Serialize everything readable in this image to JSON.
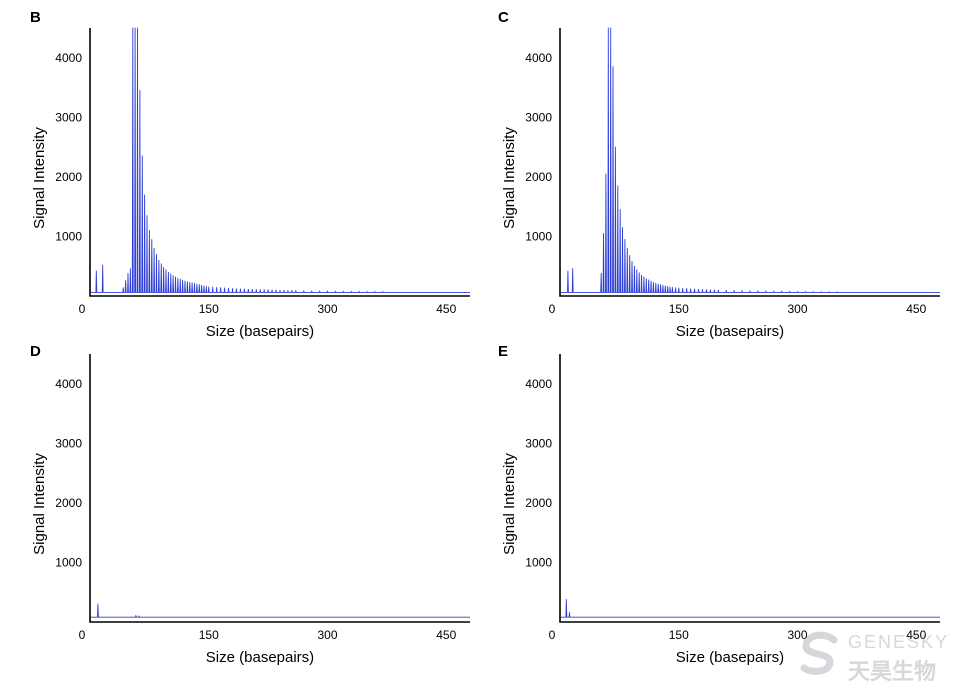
{
  "watermark": {
    "text_en": "GENESKY",
    "text_cn": "天昊生物"
  },
  "chart_data": [
    {
      "type": "line",
      "panel": "B",
      "xlabel": "Size (basepairs)",
      "ylabel": "Signal Intensity",
      "xlim": [
        0,
        480
      ],
      "ylim": [
        0,
        4500
      ],
      "xticks": [
        0,
        150,
        300,
        450
      ],
      "yticks": [
        1000,
        2000,
        3000,
        4000
      ],
      "baseline": 60,
      "series": [
        {
          "color": "#2f3fd6",
          "peaks": [
            [
              8,
              420
            ],
            [
              16,
              520
            ],
            [
              42,
              140
            ],
            [
              45,
              260
            ],
            [
              48,
              380
            ],
            [
              51,
              460
            ],
            [
              54,
              4500
            ],
            [
              57,
              4500
            ],
            [
              60,
              4500
            ],
            [
              63,
              3450
            ],
            [
              66,
              2350
            ],
            [
              69,
              1700
            ],
            [
              72,
              1350
            ],
            [
              75,
              1100
            ],
            [
              78,
              950
            ],
            [
              81,
              800
            ],
            [
              84,
              700
            ],
            [
              87,
              600
            ],
            [
              90,
              540
            ],
            [
              93,
              480
            ],
            [
              96,
              440
            ],
            [
              99,
              400
            ],
            [
              102,
              370
            ],
            [
              105,
              340
            ],
            [
              108,
              320
            ],
            [
              111,
              300
            ],
            [
              114,
              280
            ],
            [
              117,
              265
            ],
            [
              120,
              250
            ],
            [
              123,
              240
            ],
            [
              126,
              230
            ],
            [
              129,
              220
            ],
            [
              132,
              210
            ],
            [
              135,
              200
            ],
            [
              138,
              190
            ],
            [
              141,
              180
            ],
            [
              144,
              170
            ],
            [
              147,
              160
            ],
            [
              150,
              155
            ],
            [
              155,
              150
            ],
            [
              160,
              145
            ],
            [
              165,
              140
            ],
            [
              170,
              135
            ],
            [
              175,
              130
            ],
            [
              180,
              125
            ],
            [
              185,
              120
            ],
            [
              190,
              118
            ],
            [
              195,
              116
            ],
            [
              200,
              114
            ],
            [
              205,
              112
            ],
            [
              210,
              110
            ],
            [
              215,
              108
            ],
            [
              220,
              106
            ],
            [
              225,
              104
            ],
            [
              230,
              102
            ],
            [
              235,
              100
            ],
            [
              240,
              98
            ],
            [
              245,
              96
            ],
            [
              250,
              94
            ],
            [
              255,
              92
            ],
            [
              260,
              90
            ],
            [
              270,
              88
            ],
            [
              280,
              86
            ],
            [
              290,
              84
            ],
            [
              300,
              82
            ],
            [
              310,
              80
            ],
            [
              320,
              79
            ],
            [
              330,
              78
            ],
            [
              340,
              77
            ],
            [
              350,
              76
            ],
            [
              360,
              75
            ],
            [
              370,
              74
            ]
          ]
        }
      ]
    },
    {
      "type": "line",
      "panel": "C",
      "xlabel": "Size (basepairs)",
      "ylabel": "Signal Intensity",
      "xlim": [
        0,
        480
      ],
      "ylim": [
        0,
        4500
      ],
      "xticks": [
        0,
        150,
        300,
        450
      ],
      "yticks": [
        1000,
        2000,
        3000,
        4000
      ],
      "baseline": 60,
      "series": [
        {
          "color": "#2f3fd6",
          "peaks": [
            [
              10,
              420
            ],
            [
              16,
              460
            ],
            [
              52,
              380
            ],
            [
              55,
              1050
            ],
            [
              58,
              2050
            ],
            [
              61,
              4500
            ],
            [
              64,
              4500
            ],
            [
              67,
              3850
            ],
            [
              70,
              2500
            ],
            [
              73,
              1850
            ],
            [
              76,
              1450
            ],
            [
              79,
              1150
            ],
            [
              82,
              950
            ],
            [
              85,
              800
            ],
            [
              88,
              680
            ],
            [
              91,
              580
            ],
            [
              94,
              500
            ],
            [
              97,
              440
            ],
            [
              100,
              390
            ],
            [
              103,
              350
            ],
            [
              106,
              320
            ],
            [
              109,
              290
            ],
            [
              112,
              270
            ],
            [
              115,
              250
            ],
            [
              118,
              230
            ],
            [
              121,
              215
            ],
            [
              124,
              200
            ],
            [
              127,
              190
            ],
            [
              130,
              180
            ],
            [
              133,
              170
            ],
            [
              136,
              160
            ],
            [
              139,
              150
            ],
            [
              142,
              145
            ],
            [
              146,
              140
            ],
            [
              150,
              135
            ],
            [
              155,
              130
            ],
            [
              160,
              125
            ],
            [
              165,
              120
            ],
            [
              170,
              116
            ],
            [
              175,
              112
            ],
            [
              180,
              108
            ],
            [
              185,
              105
            ],
            [
              190,
              102
            ],
            [
              195,
              100
            ],
            [
              200,
              98
            ],
            [
              210,
              95
            ],
            [
              220,
              92
            ],
            [
              230,
              90
            ],
            [
              240,
              88
            ],
            [
              250,
              86
            ],
            [
              260,
              84
            ],
            [
              270,
              82
            ],
            [
              280,
              80
            ],
            [
              290,
              78
            ],
            [
              300,
              76
            ],
            [
              310,
              75
            ],
            [
              320,
              74
            ],
            [
              330,
              73
            ],
            [
              340,
              72
            ],
            [
              350,
              71
            ]
          ]
        }
      ]
    },
    {
      "type": "line",
      "panel": "D",
      "xlabel": "Size (basepairs)",
      "ylabel": "Signal Intensity",
      "xlim": [
        0,
        480
      ],
      "ylim": [
        0,
        4500
      ],
      "xticks": [
        0,
        150,
        300,
        450
      ],
      "yticks": [
        1000,
        2000,
        3000,
        4000
      ],
      "baseline": 80,
      "series": [
        {
          "color": "#2f3fd6",
          "peaks": [
            [
              10,
              300
            ],
            [
              58,
              110
            ],
            [
              62,
              100
            ]
          ]
        }
      ]
    },
    {
      "type": "line",
      "panel": "E",
      "xlabel": "Size (basepairs)",
      "ylabel": "Signal Intensity",
      "xlim": [
        0,
        480
      ],
      "ylim": [
        0,
        4500
      ],
      "xticks": [
        0,
        150,
        300,
        450
      ],
      "yticks": [
        1000,
        2000,
        3000,
        4000
      ],
      "baseline": 80,
      "series": [
        {
          "color": "#2f3fd6",
          "peaks": [
            [
              8,
              380
            ],
            [
              12,
              160
            ]
          ]
        }
      ]
    }
  ]
}
